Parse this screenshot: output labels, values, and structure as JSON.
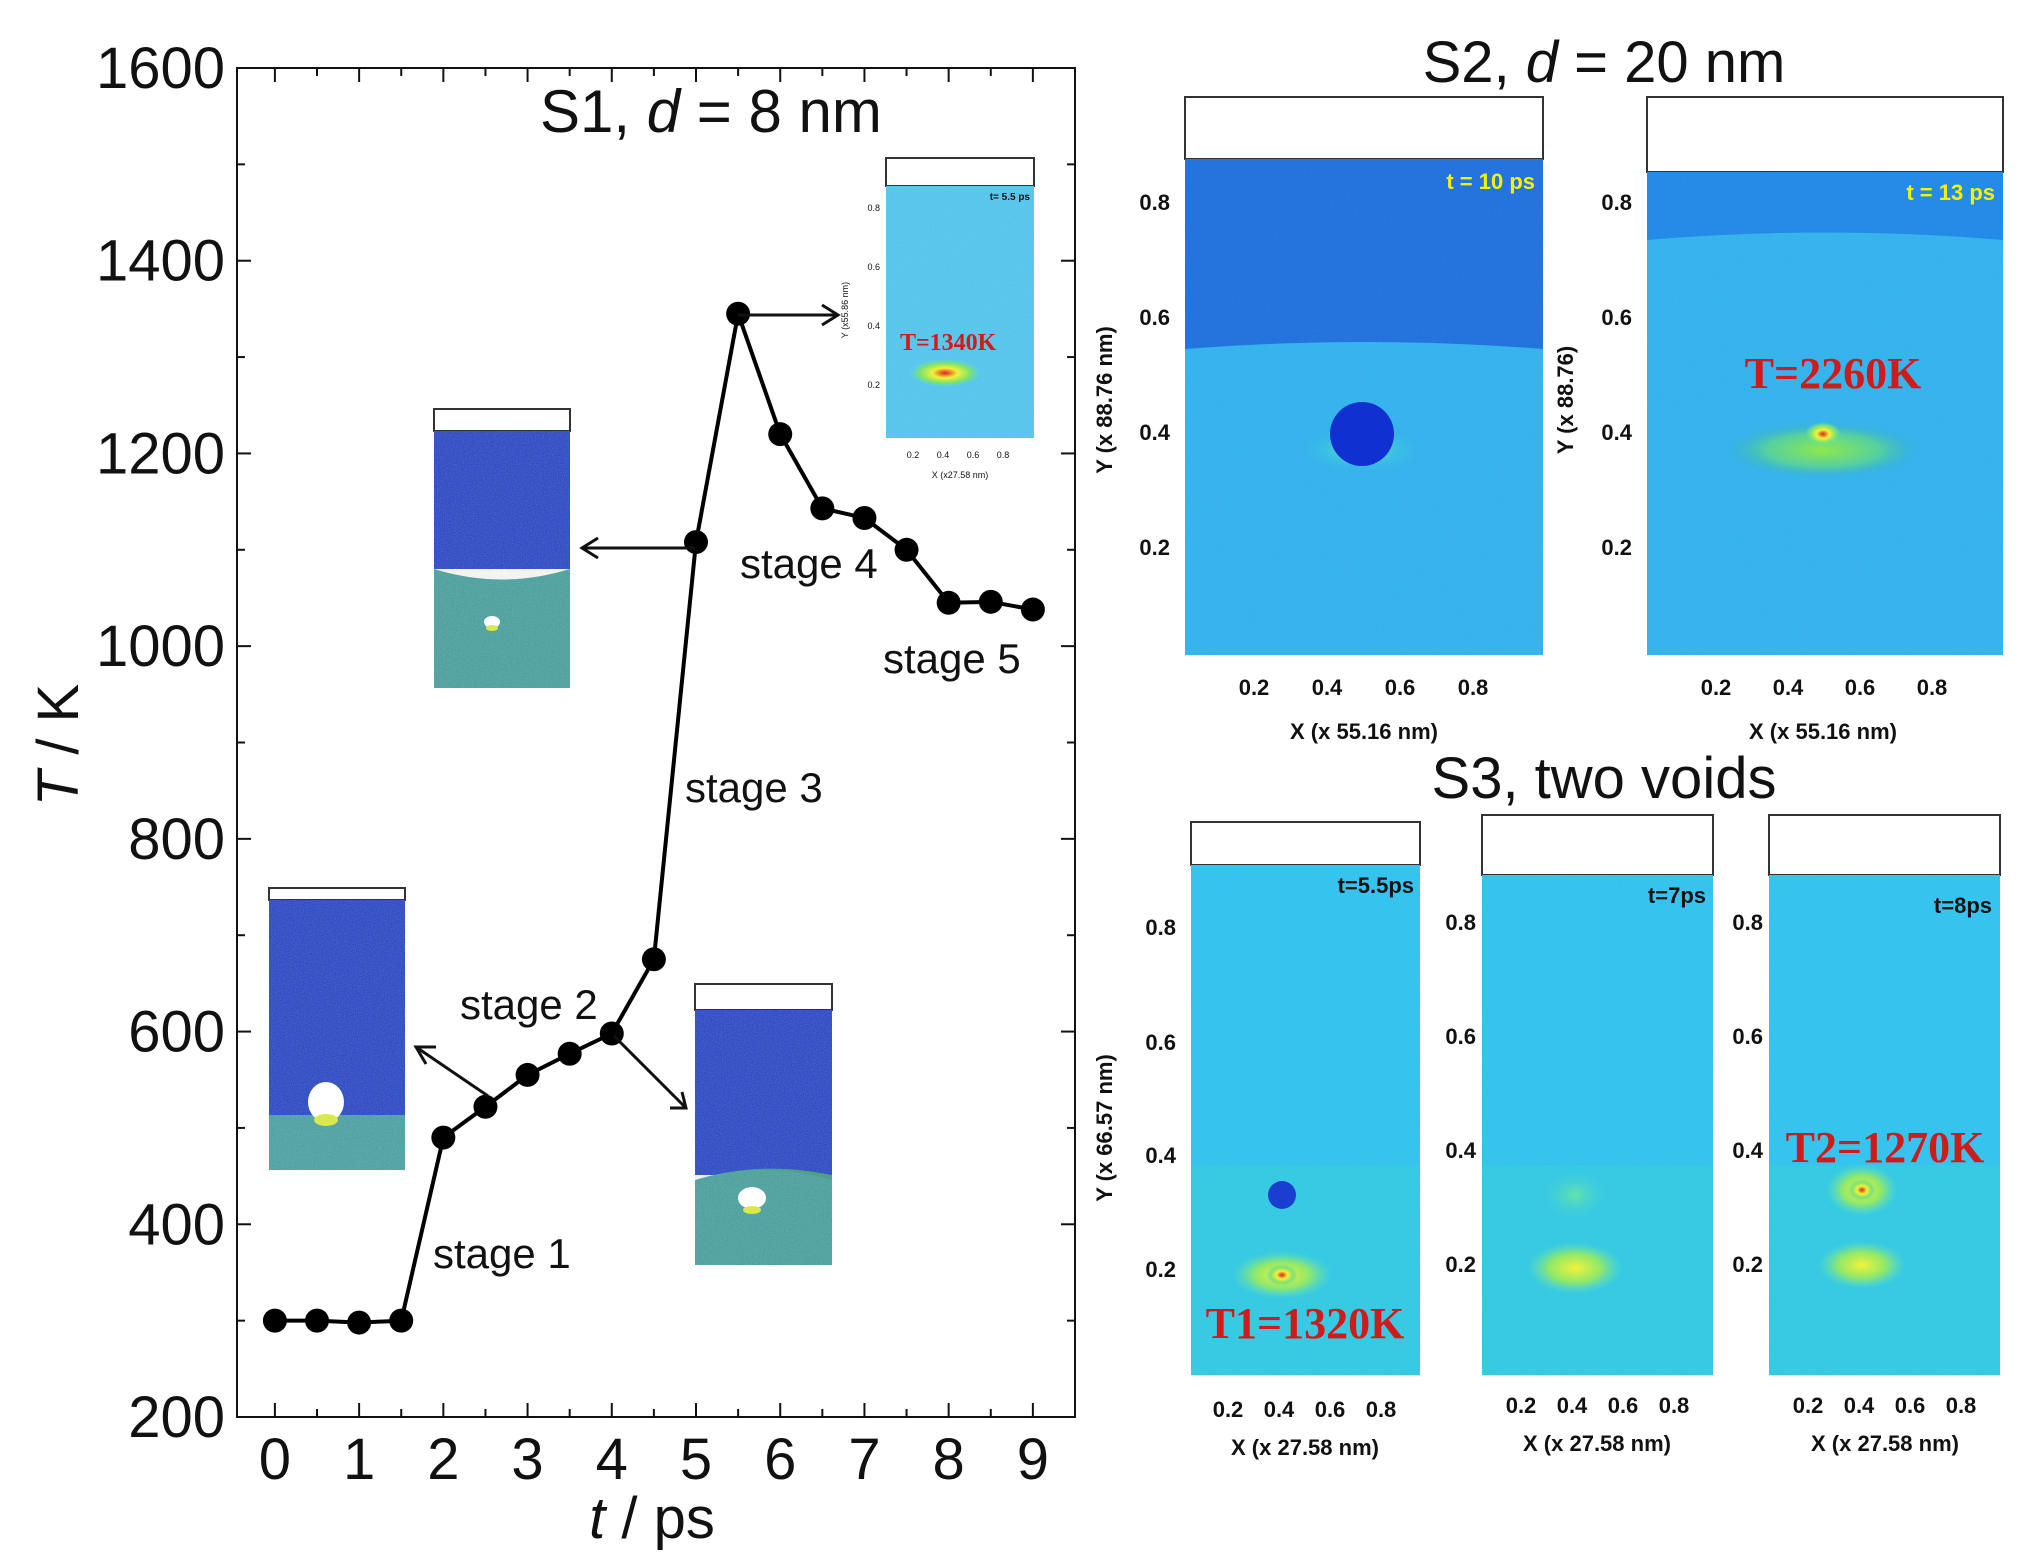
{
  "colors": {
    "series": "#000000",
    "deep_blue": "#1a3fc9",
    "mid_blue": "#1f80f0",
    "cyan": "#2ec4f2",
    "hot_red": "#e02020",
    "hot_yellow": "#f2f23a",
    "label_red": "#d11a1a",
    "time_yellow": "#f5f200"
  },
  "main": {
    "title_prefix": "S1, ",
    "title_var": "d",
    "title_suffix": " = 8 nm",
    "ylabel_var": "T",
    "ylabel_unit": " / K",
    "xlabel_var": "t",
    "xlabel_unit": " / ps",
    "stage_labels": [
      "stage 1",
      "stage 2",
      "stage 3",
      "stage  4",
      "stage 5"
    ],
    "inset_temp": "T=1340K",
    "inset_time": "t= 5.5 ps",
    "inset_ylabel": "Y (x55.86 nm)",
    "inset_xlabel": "X (x27.58 nm)",
    "inset_yticks": [
      "0.8",
      "0.6",
      "0.4",
      "0.2"
    ],
    "inset_xticks": [
      "0.2",
      "0.4",
      "0.6",
      "0.8"
    ]
  },
  "s2": {
    "title_prefix": "S2, ",
    "title_var": "d",
    "title_suffix": " = 20 nm",
    "left": {
      "time": "t = 10 ps",
      "ylabel": "Y (x 88.76 nm)",
      "xlabel": "X (x 55.16 nm)"
    },
    "right": {
      "time": "t = 13 ps",
      "ylabel": "Y (x 88.76)",
      "xlabel": "X (x 55.16 nm)",
      "temp": "T=2260K"
    },
    "yticks": [
      "0.8",
      "0.6",
      "0.4",
      "0.2"
    ],
    "xticks": [
      "0.2",
      "0.4",
      "0.6",
      "0.8"
    ]
  },
  "s3": {
    "title": "S3, two  voids",
    "panels": [
      {
        "time": "t=5.5ps",
        "temp": "T1=1320K"
      },
      {
        "time": "t=7ps",
        "temp": ""
      },
      {
        "time": "t=8ps",
        "temp": "T2=1270K"
      }
    ],
    "ylabel": "Y (x 66.57 nm)",
    "xlabel": "X (x 27.58 nm)",
    "yticks": [
      "0.8",
      "0.6",
      "0.4",
      "0.2"
    ],
    "xticks": [
      "0.2",
      "0.4",
      "0.6",
      "0.8"
    ]
  },
  "chart_data": {
    "type": "line",
    "x": [
      0,
      0.5,
      1,
      1.5,
      2,
      2.5,
      3,
      3.5,
      4,
      4.5,
      5,
      5.5,
      6,
      6.5,
      7,
      7.5,
      8,
      8.5,
      9
    ],
    "series": [
      {
        "values": [
          300,
          300,
          298,
          300,
          490,
          522,
          555,
          577,
          598,
          675,
          1108,
          1345,
          1220,
          1143,
          1133,
          1100,
          1045,
          1046,
          1038
        ]
      }
    ],
    "xlim": [
      -0.45,
      9.5
    ],
    "ylim": [
      200,
      1600
    ],
    "xticks": [
      0,
      1,
      2,
      3,
      4,
      5,
      6,
      7,
      8,
      9
    ],
    "yticks": [
      200,
      400,
      600,
      800,
      1000,
      1200,
      1400,
      1600
    ],
    "xlabel": "t / ps",
    "ylabel": "T / K",
    "title": "S1, d = 8 nm"
  }
}
